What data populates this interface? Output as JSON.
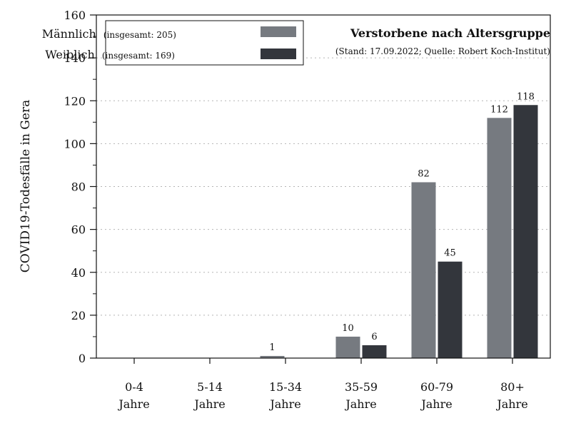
{
  "chart_data": {
    "type": "bar",
    "title": "Verstorbene nach Altersgruppe",
    "subtitle": "(Stand: 17.09.2022; Quelle: Robert Koch-Institut)",
    "xlabel": "",
    "ylabel": "COVID19-Todesfälle in Gera",
    "ylim": [
      0,
      160
    ],
    "yticks": [
      "0",
      "20",
      "40",
      "60",
      "80",
      "100",
      "120",
      "140",
      "160"
    ],
    "grid": true,
    "legend_position": "top-left",
    "categories": [
      {
        "line1": "0-4",
        "line2": "Jahre"
      },
      {
        "line1": "5-14",
        "line2": "Jahre"
      },
      {
        "line1": "15-34",
        "line2": "Jahre"
      },
      {
        "line1": "35-59",
        "line2": "Jahre"
      },
      {
        "line1": "60-79",
        "line2": "Jahre"
      },
      {
        "line1": "80+",
        "line2": "Jahre"
      }
    ],
    "series": [
      {
        "name": "Männlich",
        "legend_note": "(insgesamt: 205)",
        "color": "#767a80",
        "values": [
          0,
          0,
          1,
          10,
          82,
          112
        ],
        "labels": [
          "",
          "",
          "1",
          "10",
          "82",
          "112"
        ]
      },
      {
        "name": "Weiblich",
        "legend_note": "(insgesamt: 169)",
        "color": "#33363c",
        "values": [
          0,
          0,
          0,
          6,
          45,
          118
        ],
        "labels": [
          "",
          "",
          "",
          "6",
          "45",
          "118"
        ]
      }
    ]
  }
}
